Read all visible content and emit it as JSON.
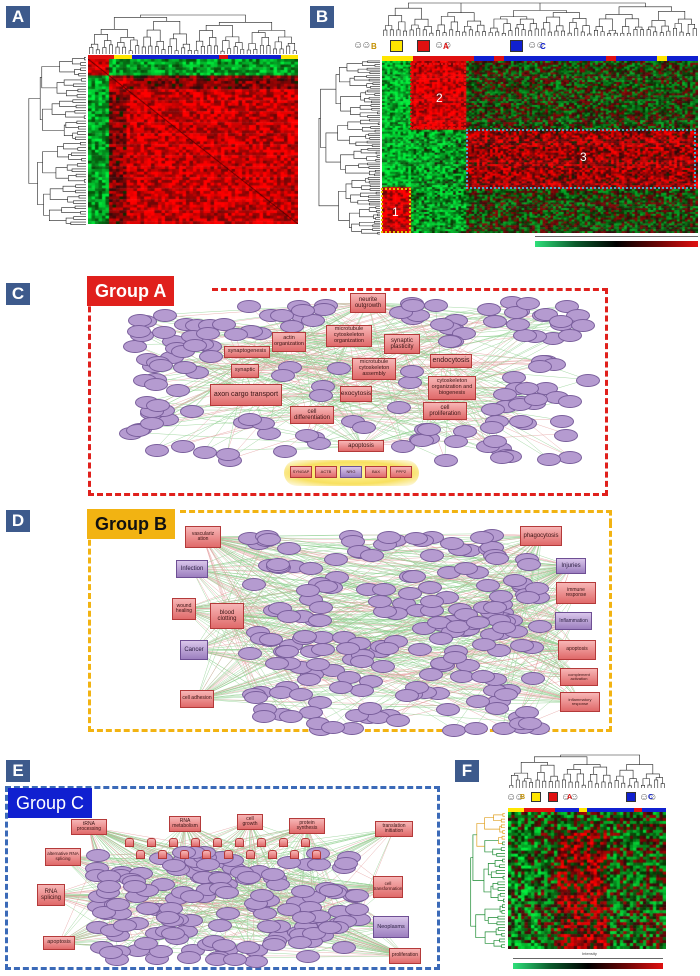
{
  "panels": {
    "a": {
      "letter": "A"
    },
    "b": {
      "letter": "B",
      "regions": [
        "2",
        "3",
        "1"
      ],
      "legend_letters": [
        "B",
        "A",
        "C"
      ]
    },
    "c": {
      "letter": "C",
      "group_title": "Group A",
      "nodes": [
        "neurite outgrowth",
        "microtubule cytoskeleton organization",
        "actin organization",
        "synaptic plasticity",
        "synaptogenesis",
        "endocytosis",
        "microtubule cytoskeleton assembly",
        "synaptic",
        "axon cargo transport",
        "cytoskeleton organization and biogenesis",
        "exocytosis",
        "cell differentiation",
        "cell proliferation",
        "apoptosis"
      ],
      "bottom_nodes": [
        "SYNGAP",
        "ACTB",
        "NRG",
        "BAX",
        "PPP2"
      ]
    },
    "d": {
      "letter": "D",
      "group_title": "Group B",
      "nodes": [
        "vasculariz ation",
        "phagocytosis",
        "Infection",
        "Injuries",
        "immune response",
        "wound healing",
        "blood clotting",
        "Inflammation",
        "Cancer",
        "apoptosis",
        "complement activation",
        "cell adhesion",
        "inflammatory response"
      ]
    },
    "e": {
      "letter": "E",
      "group_title": "Group C",
      "nodes": [
        "tRNA processing",
        "RNA metabolism",
        "cell growth",
        "protein synthesis",
        "translation initiation",
        "alternative RNA splicing",
        "RNA splicing",
        "cell transformation",
        "Neoplasms",
        "apoptosis",
        "proliferation"
      ]
    },
    "f": {
      "letter": "F",
      "legend_letters": [
        "B",
        "A",
        "C"
      ],
      "scale_label": "Intensity"
    }
  },
  "colors": {
    "panel_letter_bg": "#3d5a8c",
    "group_a": "#e0201c",
    "group_b": "#f2b312",
    "group_c": "#3b6ab8",
    "legend_yellow": "#ffe600",
    "legend_red": "#e01010",
    "legend_blue": "#1020d0"
  }
}
